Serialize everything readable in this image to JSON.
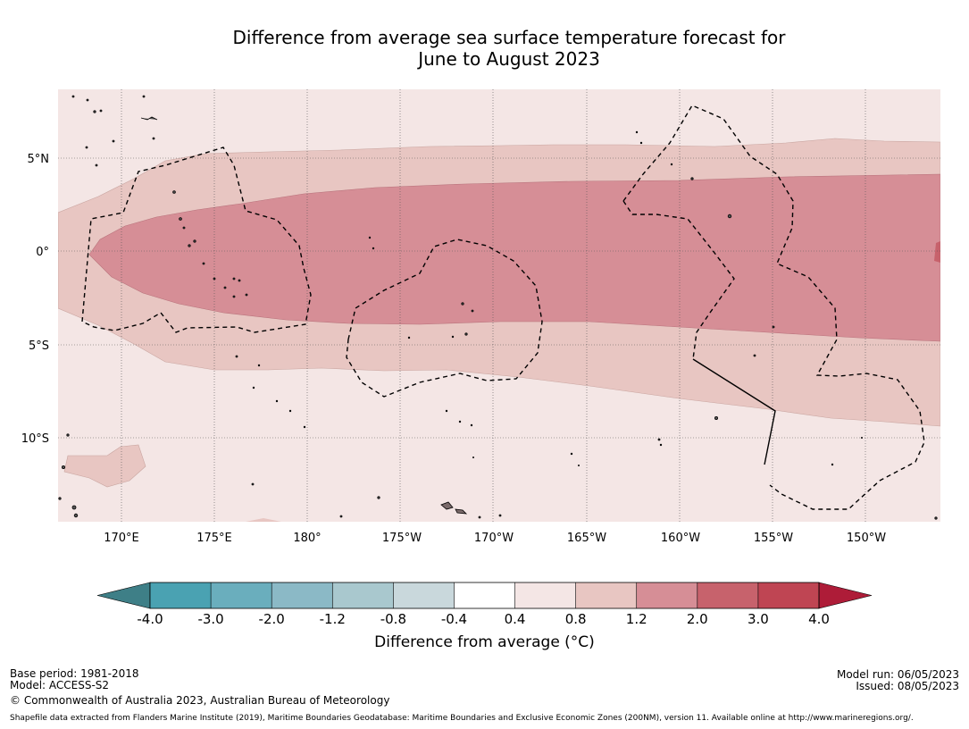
{
  "title": {
    "line1": "Difference from average sea surface temperature forecast for",
    "line2": "June to August 2023"
  },
  "axes": {
    "lat_labels": [
      "5°N",
      "0°",
      "5°S",
      "10°S"
    ],
    "lon_labels": [
      "170°E",
      "175°E",
      "180°",
      "175°W",
      "170°W",
      "165°W",
      "160°W",
      "155°W",
      "150°W"
    ]
  },
  "colorbar": {
    "ticks": [
      "-4.0",
      "-3.0",
      "-2.0",
      "-1.2",
      "-0.8",
      "-0.4",
      "0.4",
      "0.8",
      "1.2",
      "2.0",
      "3.0",
      "4.0"
    ],
    "colors": [
      "#3e7f87",
      "#4aa2b2",
      "#6aaebd",
      "#8bb9c6",
      "#a9c8ce",
      "#c9d8dc",
      "#ffffff",
      "#f4e6e5",
      "#e8c6c2",
      "#d68e96",
      "#c7626c",
      "#bf4553",
      "#ae1c38"
    ],
    "label": "Difference from average (°C)"
  },
  "footer": {
    "base_period": "Base period: 1981-2018",
    "model": "Model: ACCESS-S2",
    "model_run": "Model run: 06/05/2023",
    "issued": "Issued: 08/05/2023",
    "copyright": "© Commonwealth of Australia 2023, Australian Bureau of Meteorology",
    "shapefile": "Shapefile data extracted from Flanders Marine Institute (2019), Maritime Boundaries Geodatabase: Maritime Boundaries and Exclusive Economic Zones (200NM), version 11. Available online at http://www.marineregions.org/."
  }
}
